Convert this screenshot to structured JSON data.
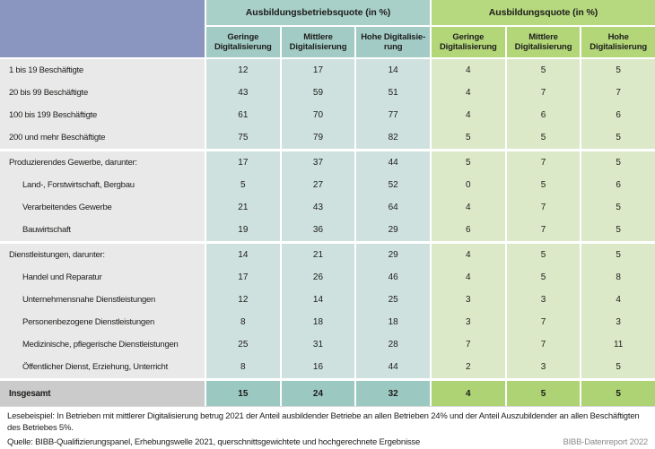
{
  "colors": {
    "corner_header": "#8b96c0",
    "teal_group_header": "#a9cfc9",
    "teal_sub_header": "#a2cbc5",
    "teal_data_cell": "#cfe1de",
    "teal_total_cell": "#9cc8c2",
    "green_group_header": "#b6d87e",
    "green_sub_header": "#b3d679",
    "green_data_cell": "#dbe9c8",
    "green_total_cell": "#aed374",
    "row_label_bg": "#e9e9e9",
    "total_label_bg": "#cbcbcb",
    "text": "#1d1d1b"
  },
  "chart_data": {
    "type": "table",
    "col_groups": [
      {
        "label": "Ausbildungsbetriebsquote (in %)",
        "columns": [
          "Geringe\nDigitalisierung",
          "Mittlere\nDigitalisierung",
          "Hohe Digitalisie-\nrung"
        ]
      },
      {
        "label": "Ausbildungsquote (in %)",
        "columns": [
          "Geringe\nDigitalisierung",
          "Mittlere\nDigitalisierung",
          "Hohe\nDigitalisierung"
        ]
      }
    ],
    "rows": [
      {
        "label": "1 bis 19 Beschäftigte",
        "indent": false,
        "values": [
          12,
          17,
          14,
          4,
          5,
          5
        ],
        "group_end": false
      },
      {
        "label": "20 bis 99 Beschäftigte",
        "indent": false,
        "values": [
          43,
          59,
          51,
          4,
          7,
          7
        ],
        "group_end": false
      },
      {
        "label": "100 bis 199 Beschäftigte",
        "indent": false,
        "values": [
          61,
          70,
          77,
          4,
          6,
          6
        ],
        "group_end": false
      },
      {
        "label": "200 und mehr Beschäftigte",
        "indent": false,
        "values": [
          75,
          79,
          82,
          5,
          5,
          5
        ],
        "group_end": true
      },
      {
        "label": "Produzierendes Gewerbe, darunter:",
        "indent": false,
        "values": [
          17,
          37,
          44,
          5,
          7,
          5
        ],
        "group_end": false
      },
      {
        "label": "Land-, Forstwirtschaft, Bergbau",
        "indent": true,
        "values": [
          5,
          27,
          52,
          0,
          5,
          6
        ],
        "group_end": false
      },
      {
        "label": "Verarbeitendes Gewerbe",
        "indent": true,
        "values": [
          21,
          43,
          64,
          4,
          7,
          5
        ],
        "group_end": false
      },
      {
        "label": "Bauwirtschaft",
        "indent": true,
        "values": [
          19,
          36,
          29,
          6,
          7,
          5
        ],
        "group_end": true
      },
      {
        "label": "Dienstleistungen, darunter:",
        "indent": false,
        "values": [
          14,
          21,
          29,
          4,
          5,
          5
        ],
        "group_end": false
      },
      {
        "label": "Handel und Reparatur",
        "indent": true,
        "values": [
          17,
          26,
          46,
          4,
          5,
          8
        ],
        "group_end": false
      },
      {
        "label": "Unternehmensnahe Dienstleistungen",
        "indent": true,
        "values": [
          12,
          14,
          25,
          3,
          3,
          4
        ],
        "group_end": false
      },
      {
        "label": "Personenbezogene Dienstleistungen",
        "indent": true,
        "values": [
          8,
          18,
          18,
          3,
          7,
          3
        ],
        "group_end": false
      },
      {
        "label": "Medizinische, pflegerische Dienstleistungen",
        "indent": true,
        "values": [
          25,
          31,
          28,
          7,
          7,
          11
        ],
        "group_end": false
      },
      {
        "label": "Öffentlicher Dienst, Erziehung, Unterricht",
        "indent": true,
        "values": [
          8,
          16,
          44,
          2,
          3,
          5
        ],
        "group_end": true
      }
    ],
    "total_row": {
      "label": "Insgesamt",
      "values": [
        15,
        24,
        32,
        4,
        5,
        5
      ]
    }
  },
  "footer": {
    "lesebeispiel": "Lesebeispiel: In Betrieben mit mittlerer Digitalisierung betrug 2021 der Anteil ausbildender Betriebe an allen Betrieben 24% und der Anteil Auszubildender an allen Beschäftigten des Betriebes 5%.",
    "quelle": "Quelle: BIBB-Qualifizierungspanel, Erhebungswelle 2021, querschnittsgewichtete und hochgerechnete Ergebnisse",
    "report": "BIBB-Datenreport 2022"
  }
}
